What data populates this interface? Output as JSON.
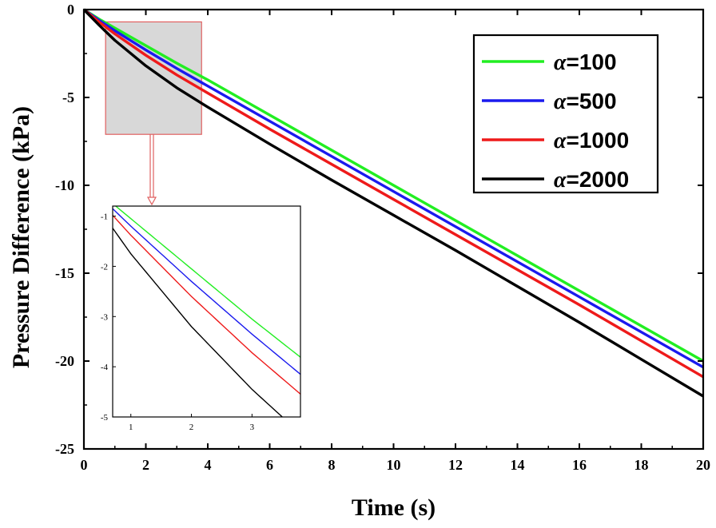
{
  "chart_data": {
    "type": "line",
    "title": "",
    "xlabel": "Time (s)",
    "ylabel": "Pressure Difference (kPa)",
    "xlim": [
      0,
      20
    ],
    "ylim": [
      -25,
      0
    ],
    "x_ticks": [
      "0",
      "2",
      "4",
      "6",
      "8",
      "10",
      "12",
      "14",
      "16",
      "18",
      "20"
    ],
    "y_ticks": [
      "0",
      "-5",
      "-10",
      "-15",
      "-20",
      "-25"
    ],
    "legend_position": "top-right",
    "grid": false,
    "series": [
      {
        "name": "α=100",
        "symbol": "α",
        "label_value": "=100",
        "color": "#22ee22",
        "x": [
          0,
          0.5,
          1,
          2,
          3,
          4,
          6,
          8,
          10,
          12,
          14,
          16,
          18,
          20
        ],
        "y": [
          0,
          -0.55,
          -1.05,
          -2.05,
          -3.05,
          -4.0,
          -6.0,
          -8.0,
          -10.0,
          -12.0,
          -14.0,
          -16.0,
          -18.0,
          -20.0
        ]
      },
      {
        "name": "α=500",
        "symbol": "α",
        "label_value": "=500",
        "color": "#1a1aee",
        "x": [
          0,
          0.5,
          1,
          2,
          3,
          4,
          6,
          8,
          10,
          12,
          14,
          16,
          18,
          20
        ],
        "y": [
          0,
          -0.62,
          -1.2,
          -2.3,
          -3.35,
          -4.35,
          -6.35,
          -8.35,
          -10.35,
          -12.35,
          -14.35,
          -16.35,
          -18.35,
          -20.35
        ]
      },
      {
        "name": "α=1000",
        "symbol": "α",
        "label_value": "=1000",
        "color": "#ee1a1a",
        "x": [
          0,
          0.5,
          1,
          2,
          3,
          4,
          6,
          8,
          10,
          12,
          14,
          16,
          18,
          20
        ],
        "y": [
          0,
          -0.72,
          -1.38,
          -2.6,
          -3.72,
          -4.75,
          -6.8,
          -8.8,
          -10.8,
          -12.8,
          -14.8,
          -16.8,
          -18.85,
          -20.9
        ]
      },
      {
        "name": "α=2000",
        "symbol": "α",
        "label_value": "=2000",
        "color": "#000000",
        "x": [
          0,
          0.5,
          1,
          2,
          3,
          4,
          6,
          8,
          10,
          12,
          14,
          16,
          18,
          20
        ],
        "y": [
          0,
          -0.9,
          -1.75,
          -3.2,
          -4.45,
          -5.55,
          -7.65,
          -9.7,
          -11.7,
          -13.7,
          -15.75,
          -17.8,
          -19.9,
          -22.0
        ]
      }
    ],
    "zoom_region": {
      "xlim": [
        0.7,
        3.8
      ],
      "ylim": [
        -7.1,
        -0.7
      ]
    },
    "inset": {
      "xlim": [
        0.7,
        3.8
      ],
      "ylim": [
        -5,
        -0.8
      ],
      "x_ticks": [
        "1",
        "2",
        "3"
      ],
      "y_ticks": [
        "-1",
        "-2",
        "-3",
        "-4",
        "-5"
      ]
    }
  }
}
